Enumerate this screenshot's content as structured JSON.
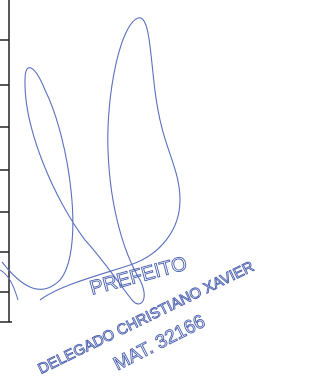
{
  "stamp": {
    "title": "PREFEITO",
    "name": "DELEGADO CHRISTIANO XAVIER",
    "registration": "MAT. 32166"
  }
}
